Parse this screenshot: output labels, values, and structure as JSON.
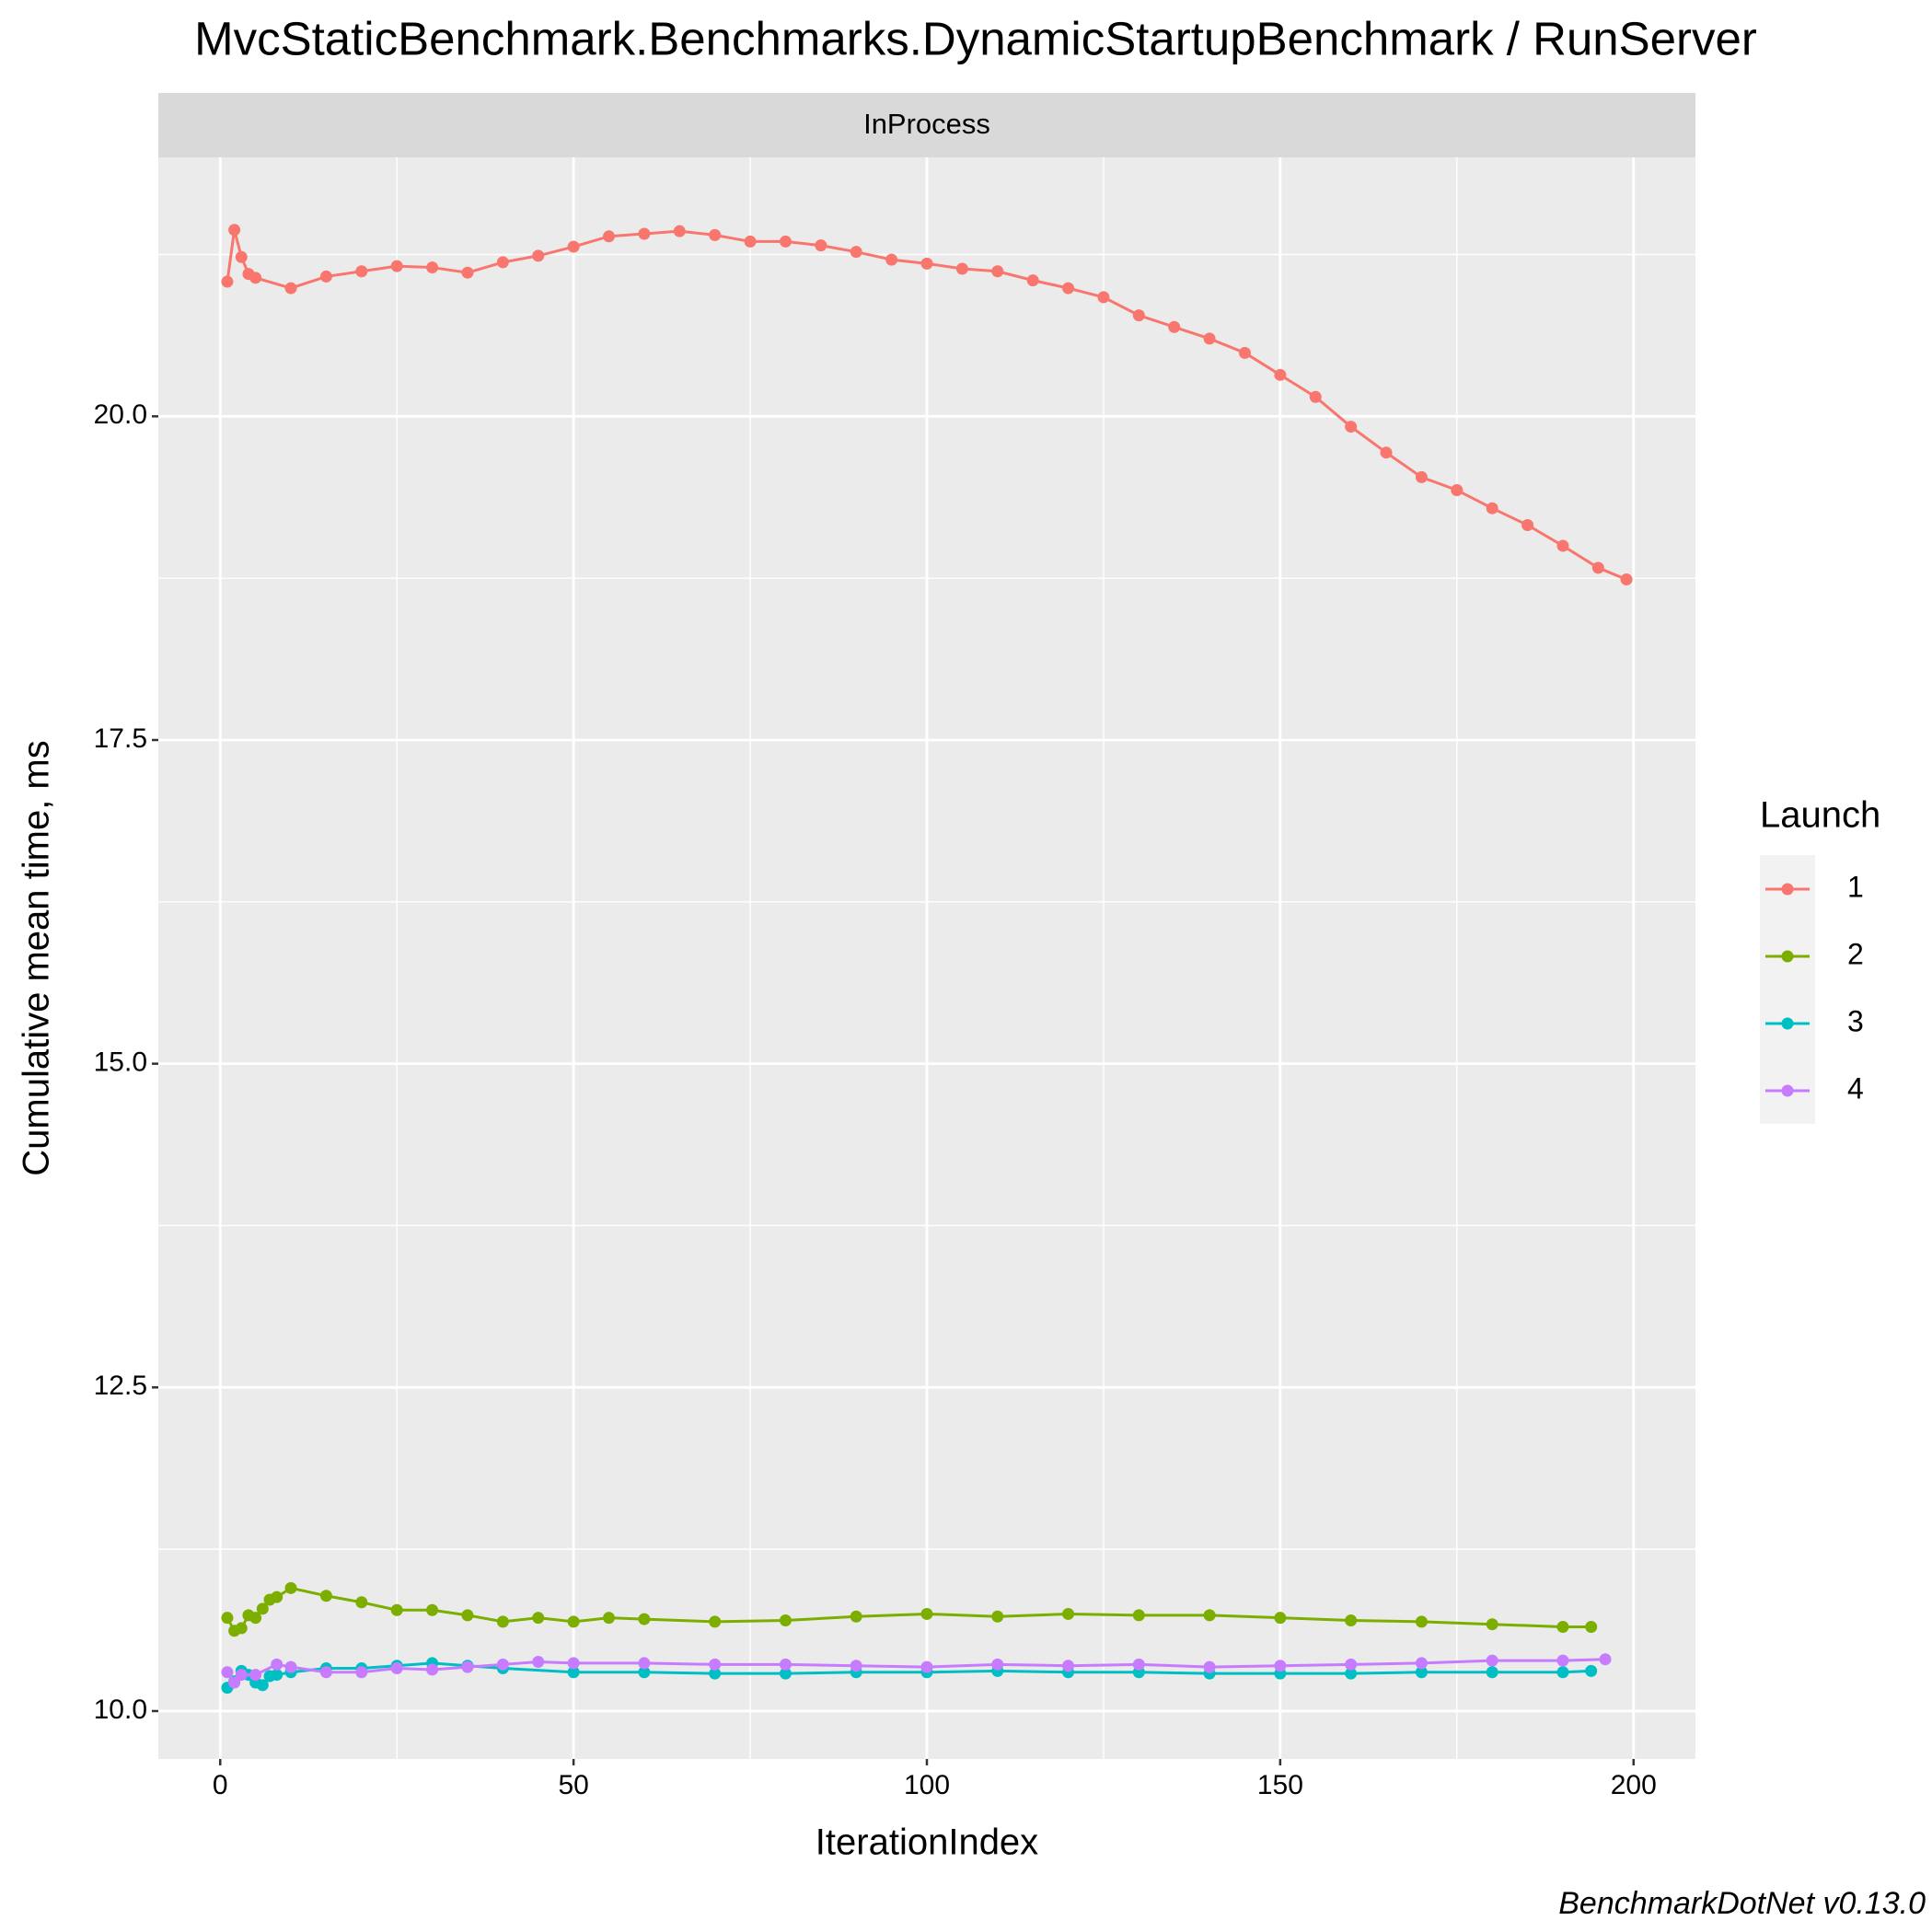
{
  "chart_data": {
    "type": "line",
    "title": "MvcStaticBenchmark.Benchmarks.DynamicStartupBenchmark / RunServer",
    "facet": "InProcess",
    "x_label": "IterationIndex",
    "y_label": "Cumulative mean time, ms",
    "caption": "BenchmarkDotNet v0.13.0",
    "legend_title": "Launch",
    "legend_position": "right",
    "grid": true,
    "xlim": [
      -8.76,
      208.76
    ],
    "ylim": [
      9.63,
      22.0
    ],
    "xticks": [
      0,
      50,
      100,
      150,
      200
    ],
    "yticks": [
      {
        "value": 10,
        "label": "10.0"
      },
      12.5,
      {
        "value": 15,
        "label": "15.0"
      },
      17.5,
      {
        "value": 20,
        "label": "20.0"
      }
    ],
    "xminor": [
      25,
      75,
      125,
      175
    ],
    "yminor": [
      11.25,
      13.75,
      16.25,
      18.75,
      21.25
    ],
    "series": [
      {
        "name": "1",
        "color": "#F8766D",
        "x": [
          1,
          2,
          3,
          4,
          5,
          10,
          15,
          20,
          25,
          30,
          35,
          40,
          45,
          50,
          55,
          60,
          65,
          70,
          75,
          80,
          85,
          90,
          95,
          100,
          105,
          110,
          115,
          120,
          125,
          130,
          135,
          140,
          145,
          150,
          155,
          160,
          165,
          170,
          175,
          180,
          185,
          190,
          195,
          199
        ],
        "values": [
          21.04,
          21.44,
          21.23,
          21.1,
          21.07,
          20.99,
          21.08,
          21.12,
          21.16,
          21.15,
          21.11,
          21.19,
          21.24,
          21.31,
          21.39,
          21.41,
          21.43,
          21.4,
          21.35,
          21.35,
          21.32,
          21.27,
          21.21,
          21.18,
          21.14,
          21.12,
          21.05,
          20.99,
          20.92,
          20.78,
          20.69,
          20.6,
          20.49,
          20.32,
          20.15,
          19.92,
          19.72,
          19.53,
          19.43,
          19.29,
          19.16,
          19.0,
          18.83,
          18.74
        ]
      },
      {
        "name": "2",
        "color": "#7CAE00",
        "x": [
          1,
          2,
          3,
          4,
          5,
          6,
          7,
          8,
          10,
          15,
          20,
          25,
          30,
          35,
          40,
          45,
          50,
          55,
          60,
          70,
          80,
          90,
          100,
          110,
          120,
          130,
          140,
          150,
          160,
          170,
          180,
          190,
          194
        ],
        "values": [
          10.72,
          10.62,
          10.64,
          10.74,
          10.72,
          10.79,
          10.86,
          10.88,
          10.95,
          10.89,
          10.84,
          10.78,
          10.78,
          10.74,
          10.69,
          10.72,
          10.69,
          10.72,
          10.71,
          10.69,
          10.7,
          10.73,
          10.75,
          10.73,
          10.75,
          10.74,
          10.74,
          10.72,
          10.7,
          10.69,
          10.67,
          10.65,
          10.65
        ]
      },
      {
        "name": "3",
        "color": "#00BFC4",
        "x": [
          1,
          2,
          3,
          4,
          5,
          6,
          7,
          8,
          10,
          15,
          20,
          25,
          30,
          35,
          40,
          50,
          60,
          70,
          80,
          90,
          100,
          110,
          120,
          130,
          140,
          150,
          160,
          170,
          180,
          190,
          194
        ],
        "values": [
          10.18,
          10.23,
          10.31,
          10.28,
          10.22,
          10.2,
          10.27,
          10.28,
          10.3,
          10.33,
          10.33,
          10.35,
          10.37,
          10.35,
          10.33,
          10.3,
          10.3,
          10.29,
          10.29,
          10.3,
          10.3,
          10.31,
          10.3,
          10.3,
          10.29,
          10.29,
          10.29,
          10.3,
          10.3,
          10.3,
          10.31
        ]
      },
      {
        "name": "4",
        "color": "#C77CFF",
        "x": [
          1,
          2,
          3,
          5,
          8,
          10,
          15,
          20,
          25,
          30,
          35,
          40,
          45,
          50,
          60,
          70,
          80,
          90,
          100,
          110,
          120,
          130,
          140,
          150,
          160,
          170,
          180,
          190,
          196
        ],
        "values": [
          10.3,
          10.22,
          10.28,
          10.28,
          10.36,
          10.34,
          10.3,
          10.3,
          10.33,
          10.32,
          10.34,
          10.36,
          10.38,
          10.37,
          10.37,
          10.36,
          10.36,
          10.35,
          10.34,
          10.36,
          10.35,
          10.36,
          10.34,
          10.35,
          10.36,
          10.37,
          10.39,
          10.39,
          10.4
        ]
      }
    ]
  }
}
